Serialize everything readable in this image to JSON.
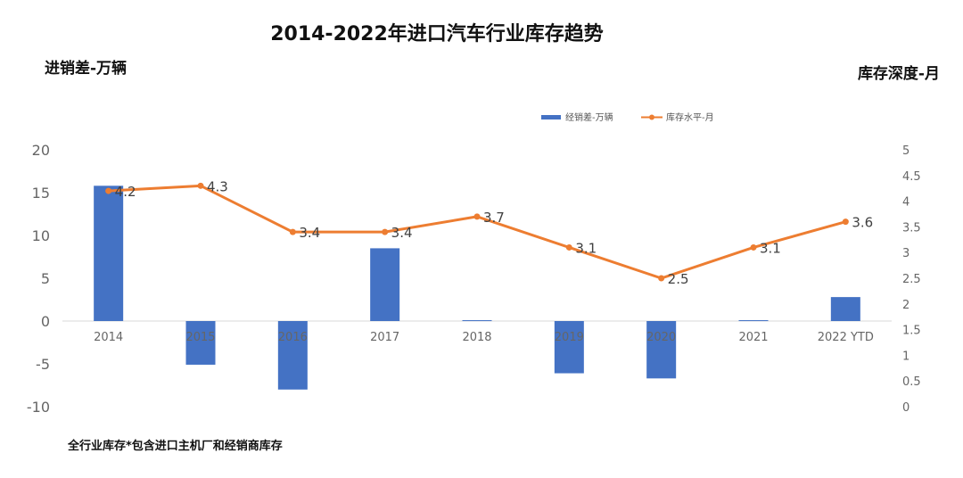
{
  "header": {
    "title": "2014-2022年进口汽车行业库存趋势",
    "left_unit": "进销差-万辆",
    "right_unit": "库存深度-月"
  },
  "footnote": "全行业库存*包含进口主机厂和经销商库存",
  "colors": {
    "bar": "#4472C4",
    "line": "#ED7D31",
    "axis": "#D9D9D9"
  },
  "chart_data": {
    "type": "bar",
    "title": "2014-2022年进口汽车行业库存趋势",
    "categories": [
      "2014",
      "2015",
      "2016",
      "2017",
      "2018",
      "2019",
      "2020",
      "2021",
      "2022 YTD"
    ],
    "series": [
      {
        "name": "经销差-万辆",
        "type": "bar",
        "axis": "left",
        "values": [
          15.8,
          -5.1,
          -8.0,
          8.5,
          0.1,
          -6.1,
          -6.7,
          0.1,
          2.8
        ]
      },
      {
        "name": "库存水平-月",
        "type": "line",
        "axis": "right",
        "values": [
          4.2,
          4.3,
          3.4,
          3.4,
          3.7,
          3.1,
          2.5,
          3.1,
          3.6
        ],
        "labels": [
          "4.2",
          "4.3",
          "3.4",
          "3.4",
          "3.7",
          "3.1",
          "2.5",
          "3.1",
          "3.6"
        ]
      }
    ],
    "left_axis": {
      "label": "进销差-万辆",
      "ylim": [
        -10,
        20
      ],
      "ticks": [
        "20",
        "15",
        "10",
        "5",
        "0",
        "-5",
        "-10"
      ]
    },
    "right_axis": {
      "label": "库存深度-月",
      "ylim": [
        0,
        5
      ],
      "ticks": [
        "5",
        "4.5",
        "4",
        "3.5",
        "3",
        "2.5",
        "2",
        "1.5",
        "1",
        "0.5",
        "0"
      ]
    },
    "legend": {
      "position": "top-right"
    },
    "grid": false
  }
}
